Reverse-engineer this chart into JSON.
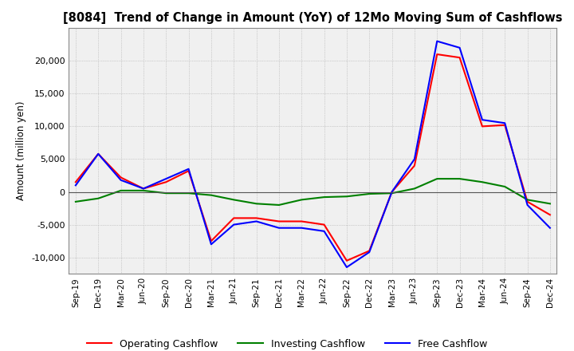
{
  "title": "[8084]  Trend of Change in Amount (YoY) of 12Mo Moving Sum of Cashflows",
  "ylabel": "Amount (million yen)",
  "x_labels": [
    "Sep-19",
    "Dec-19",
    "Mar-20",
    "Jun-20",
    "Sep-20",
    "Dec-20",
    "Mar-21",
    "Jun-21",
    "Sep-21",
    "Dec-21",
    "Mar-22",
    "Jun-22",
    "Sep-22",
    "Dec-22",
    "Mar-23",
    "Jun-23",
    "Sep-23",
    "Dec-23",
    "Mar-24",
    "Jun-24",
    "Sep-24",
    "Dec-24"
  ],
  "operating": [
    1500,
    5800,
    2200,
    500,
    1500,
    3200,
    -7500,
    -4000,
    -4000,
    -4500,
    -4500,
    -5000,
    -10500,
    -9000,
    0,
    4000,
    21000,
    20500,
    10000,
    10200,
    -1500,
    -3500
  ],
  "investing": [
    -1500,
    -1000,
    200,
    200,
    -200,
    -200,
    -500,
    -1200,
    -1800,
    -2000,
    -1200,
    -800,
    -700,
    -300,
    -200,
    500,
    2000,
    2000,
    1500,
    800,
    -1200,
    -1800
  ],
  "free": [
    1000,
    5800,
    1800,
    500,
    2000,
    3500,
    -8000,
    -5000,
    -4500,
    -5500,
    -5500,
    -6000,
    -11500,
    -9200,
    0,
    5000,
    23000,
    22000,
    11000,
    10500,
    -2000,
    -5500
  ],
  "ylim": [
    -12500,
    25000
  ],
  "yticks": [
    -10000,
    -5000,
    0,
    5000,
    10000,
    15000,
    20000
  ],
  "operating_color": "#ff0000",
  "investing_color": "#008000",
  "free_color": "#0000ff",
  "background_color": "#ffffff",
  "plot_bg_color": "#f0f0f0",
  "grid_color": "#aaaaaa"
}
